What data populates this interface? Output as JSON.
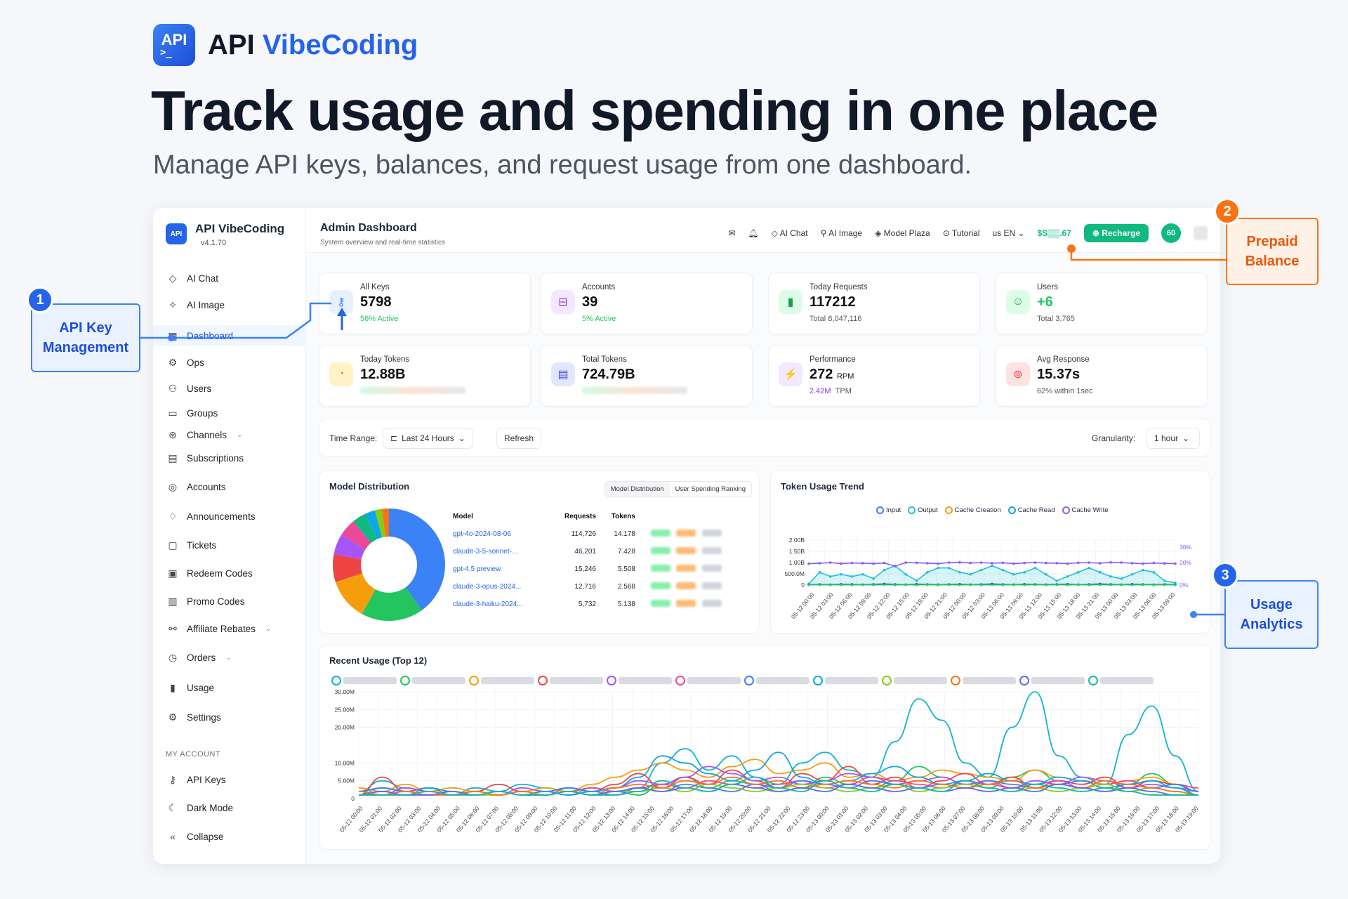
{
  "brand": {
    "logo_text": "API",
    "logo_prompt": ">_",
    "name_a": "API",
    "name_b": "VibeCoding"
  },
  "hero": {
    "title": "Track usage and spending in one place",
    "subtitle": "Manage API keys, balances, and request usage from one dashboard."
  },
  "sidebar": {
    "logo_text": "API",
    "title": "API VibeCoding",
    "version": "v4.1.70",
    "items": [
      {
        "label": "AI Chat",
        "icon": "chat-icon"
      },
      {
        "label": "AI Image",
        "icon": "image-icon"
      },
      {
        "label": "Dashboard",
        "icon": "dashboard-icon",
        "active": true
      },
      {
        "label": "Ops",
        "icon": "ops-icon"
      },
      {
        "label": "Users",
        "icon": "users-icon"
      },
      {
        "label": "Groups",
        "icon": "folder-icon"
      },
      {
        "label": "Channels",
        "icon": "channels-icon",
        "chevron": true
      },
      {
        "label": "Subscriptions",
        "icon": "subscriptions-icon"
      },
      {
        "label": "Accounts",
        "icon": "accounts-icon"
      },
      {
        "label": "Announcements",
        "icon": "announcements-icon"
      },
      {
        "label": "Tickets",
        "icon": "tickets-icon"
      },
      {
        "label": "Redeem Codes",
        "icon": "redeem-icon"
      },
      {
        "label": "Promo Codes",
        "icon": "promo-icon"
      },
      {
        "label": "Affiliate Rebates",
        "icon": "affiliate-icon",
        "chevron": true
      },
      {
        "label": "Orders",
        "icon": "orders-icon",
        "chevron": true
      },
      {
        "label": "Usage",
        "icon": "usage-icon"
      },
      {
        "label": "Settings",
        "icon": "gear-icon"
      }
    ],
    "my_account_label": "MY ACCOUNT",
    "account_items": [
      {
        "label": "API Keys",
        "icon": "key-icon"
      },
      {
        "label": "Dark Mode",
        "icon": "moon-icon"
      },
      {
        "label": "Collapse",
        "icon": "collapse-icon"
      }
    ]
  },
  "topbar": {
    "title": "Admin Dashboard",
    "subtitle": "System overview and real-time statistics",
    "ai_chat": "AI Chat",
    "ai_image": "AI Image",
    "model_plaza": "Model Plaza",
    "tutorial": "Tutorial",
    "lang": "us EN",
    "balance": "$S▒▒.67",
    "recharge": "Recharge",
    "circle": "60"
  },
  "cards": [
    {
      "label": "All Keys",
      "value": "5798",
      "note": "56% Active",
      "note_style": "green",
      "icon": "key-icon",
      "bg": "#e8f0fe",
      "fg": "#3b82f6"
    },
    {
      "label": "Accounts",
      "value": "39",
      "note": "5% Active",
      "note_style": "green",
      "icon": "lock-icon",
      "bg": "#f3e8ff",
      "fg": "#9333ea"
    },
    {
      "label": "Today Requests",
      "value": "117212",
      "note": "Total 8,047,116",
      "note_style": "",
      "icon": "bar-chart-icon",
      "bg": "#dcfce7",
      "fg": "#16a34a"
    },
    {
      "label": "Users",
      "value": "+6",
      "note": "Total 3,765",
      "note_style": "",
      "icon": "user-add-icon",
      "bg": "#dcfce7",
      "fg": "#16a34a",
      "value_style": "green"
    },
    {
      "label": "Today Tokens",
      "value": "12.88B",
      "note": "",
      "icon": "timer-icon",
      "bg": "#fef3c7",
      "fg": "#f59e0b",
      "blur": true
    },
    {
      "label": "Total Tokens",
      "value": "724.79B",
      "note": "",
      "icon": "database-icon",
      "bg": "#e0e7ff",
      "fg": "#4f46e5",
      "blur": true
    },
    {
      "label": "Performance",
      "value": "272",
      "value_unit": "RPM",
      "note": "2.42M",
      "note_unit": "TPM",
      "icon": "bolt-icon",
      "bg": "#f3e8ff",
      "fg": "#9333ea"
    },
    {
      "label": "Avg Response",
      "value": "15.37s",
      "note": "62% within 1sec",
      "icon": "stopwatch-icon",
      "bg": "#fee2e2",
      "fg": "#ef4444"
    }
  ],
  "filters": {
    "time_range_label": "Time Range:",
    "time_range_value": "Last 24 Hours",
    "refresh": "Refresh",
    "granularity_label": "Granularity:",
    "granularity_value": "1 hour"
  },
  "model_panel": {
    "title": "Model Distribution",
    "tab1": "Model Distribution",
    "tab2": "User Spending Ranking",
    "headers": [
      "Model",
      "Requests",
      "Tokens"
    ],
    "rows": [
      {
        "model": "gpt-4o-2024-08-06",
        "requests": "114,726",
        "tokens": "14.178"
      },
      {
        "model": "claude-3-5-sonnet-...",
        "requests": "46,201",
        "tokens": "7.428"
      },
      {
        "model": "gpt-4.5 preview",
        "requests": "15,246",
        "tokens": "5.508"
      },
      {
        "model": "claude-3-opus-2024...",
        "requests": "12,716",
        "tokens": "2.568"
      },
      {
        "model": "claude-3-haiku-2024...",
        "requests": "5,732",
        "tokens": "5.138"
      }
    ]
  },
  "token_panel": {
    "title": "Token Usage Trend",
    "legend": [
      "Input",
      "Output",
      "Cache Creation",
      "Cache Read",
      "Cache Write"
    ],
    "yticks": [
      "2.00B",
      "1.50B",
      "1.00B",
      "500.0M",
      "0"
    ],
    "rticks": [
      "30%",
      "20%",
      "0%"
    ]
  },
  "usage_panel": {
    "title": "Recent Usage (Top 12)",
    "yticks": [
      "30.00M",
      "25.00M",
      "20.00M",
      "10.00M",
      "5.00M",
      "0"
    ]
  },
  "callouts": {
    "c1": {
      "num": "1",
      "text_a": "API Key",
      "text_b": "Management"
    },
    "c2": {
      "num": "2",
      "text_a": "Prepaid",
      "text_b": "Balance"
    },
    "c3": {
      "num": "3",
      "text_a": "Usage",
      "text_b": "Analytics"
    }
  },
  "chart_data": [
    {
      "type": "pie",
      "title": "Model Distribution",
      "values": [
        40,
        18,
        12,
        8,
        6,
        5,
        4,
        3,
        2,
        2
      ],
      "colors": [
        "#3b82f6",
        "#22c55e",
        "#f59e0b",
        "#ef4444",
        "#a855f7",
        "#ec4899",
        "#10b981",
        "#0ea5e9",
        "#84cc16",
        "#f97316"
      ]
    },
    {
      "type": "line",
      "title": "Token Usage Trend",
      "series": [
        {
          "name": "Input",
          "color": "#22c1d6",
          "values": [
            0.05,
            0.6,
            0.4,
            0.5,
            0.4,
            0.5,
            0.3,
            0.7,
            0.9,
            0.5,
            0.2,
            0.6,
            0.8,
            0.8,
            0.6,
            0.5,
            0.7,
            0.9,
            0.7,
            0.5,
            0.6,
            0.8,
            0.5,
            0.2,
            0.4,
            0.6,
            0.8,
            0.6,
            0.4,
            0.3,
            0.5,
            0.7,
            0.6,
            0.2,
            0.1
          ]
        },
        {
          "name": "Cache Write",
          "color": "#8b5cf6",
          "values": [
            1.0,
            1.02,
            1.05,
            1.0,
            1.03,
            1.02,
            1.0,
            1.03,
            0.88,
            1.05,
            1.04,
            1.02,
            1.0,
            1.05,
            1.06,
            1.03,
            1.05,
            1.02,
            1.04,
            1.0,
            1.03,
            1.05,
            1.03,
            1.02,
            1.0,
            1.04,
            1.05,
            1.02,
            1.06,
            1.05,
            1.02,
            1.0,
            1.03,
            1.01,
            1.0
          ]
        },
        {
          "name": "Output",
          "color": "#1e40af",
          "values": [
            0.02,
            0.03,
            0.02,
            0.04,
            0.03,
            0.02,
            0.03,
            0.05,
            0.03,
            0.02,
            0.04,
            0.03,
            0.02,
            0.03,
            0.04,
            0.02,
            0.03,
            0.05,
            0.03,
            0.02,
            0.04,
            0.03,
            0.02,
            0.03,
            0.04,
            0.02,
            0.03,
            0.05,
            0.03,
            0.02,
            0.04,
            0.03,
            0.02,
            0.03,
            0.02
          ]
        },
        {
          "name": "Cache Read",
          "color": "#22c55e",
          "values": [
            0.01,
            0.02,
            0.01,
            0.02,
            0.01,
            0.02,
            0.01,
            0.02,
            0.01,
            0.02,
            0.01,
            0.02,
            0.01,
            0.02,
            0.01,
            0.02,
            0.01,
            0.02,
            0.01,
            0.02,
            0.01,
            0.02,
            0.01,
            0.02,
            0.01,
            0.02,
            0.01,
            0.02,
            0.01,
            0.02,
            0.01,
            0.02,
            0.01,
            0.02,
            0.01
          ]
        }
      ],
      "ylim": [
        0,
        2.1
      ]
    },
    {
      "type": "line",
      "title": "Recent Usage (Top 12)",
      "ylim": [
        0,
        30
      ],
      "series": [
        {
          "color": "#10b5c8",
          "values": [
            2,
            5,
            3,
            2,
            1,
            3,
            2,
            4,
            3,
            2,
            1,
            2,
            3,
            10,
            14,
            8,
            12,
            6,
            4,
            10,
            13,
            8,
            6,
            16,
            28,
            22,
            10,
            6,
            20,
            30,
            12,
            6,
            4,
            18,
            26,
            12,
            2
          ]
        },
        {
          "color": "#22c55e",
          "values": [
            1,
            3,
            2,
            1,
            2,
            1,
            2,
            1,
            2,
            1,
            3,
            2,
            1,
            4,
            6,
            3,
            5,
            4,
            2,
            3,
            6,
            4,
            3,
            5,
            9,
            6,
            4,
            3,
            6,
            8,
            5,
            3,
            2,
            4,
            7,
            4,
            1
          ]
        },
        {
          "color": "#f59e0b",
          "values": [
            3,
            2,
            4,
            2,
            3,
            2,
            1,
            2,
            3,
            2,
            4,
            6,
            8,
            10,
            8,
            6,
            9,
            11,
            7,
            8,
            10,
            6,
            7,
            5,
            6,
            8,
            7,
            6,
            5,
            8,
            6,
            5,
            4,
            5,
            6,
            4,
            3
          ]
        },
        {
          "color": "#ef4444",
          "values": [
            1,
            6,
            2,
            3,
            1,
            2,
            4,
            2,
            1,
            3,
            2,
            4,
            7,
            3,
            6,
            4,
            8,
            5,
            3,
            7,
            5,
            9,
            4,
            6,
            3,
            5,
            7,
            4,
            6,
            3,
            5,
            4,
            6,
            3,
            5,
            4,
            2
          ]
        },
        {
          "color": "#a855f7",
          "values": [
            2,
            1,
            3,
            2,
            1,
            2,
            1,
            3,
            2,
            1,
            2,
            3,
            5,
            4,
            6,
            9,
            7,
            5,
            6,
            4,
            5,
            7,
            6,
            4,
            5,
            6,
            4,
            5,
            3,
            5,
            4,
            6,
            5,
            3,
            4,
            3,
            2
          ]
        },
        {
          "color": "#ec4899",
          "values": [
            1,
            2,
            1,
            2,
            1,
            2,
            1,
            2,
            1,
            2,
            3,
            2,
            3,
            4,
            3,
            5,
            4,
            3,
            4,
            5,
            3,
            4,
            6,
            5,
            4,
            3,
            5,
            4,
            3,
            4,
            5,
            3,
            4,
            5,
            3,
            4,
            3
          ]
        },
        {
          "color": "#3b82f6",
          "values": [
            2,
            3,
            2,
            1,
            2,
            1,
            2,
            1,
            2,
            3,
            2,
            1,
            3,
            2,
            4,
            3,
            2,
            4,
            3,
            5,
            4,
            3,
            5,
            4,
            3,
            4,
            3,
            5,
            4,
            3,
            4,
            5,
            3,
            4,
            3,
            4,
            2
          ]
        },
        {
          "color": "#0ea5e9",
          "values": [
            1,
            2,
            1,
            3,
            2,
            1,
            2,
            1,
            2,
            1,
            2,
            3,
            6,
            12,
            10,
            7,
            5,
            8,
            13,
            6,
            4,
            5,
            7,
            9,
            6,
            4,
            5,
            7,
            5,
            4,
            6,
            5,
            3,
            4,
            5,
            3,
            1
          ]
        },
        {
          "color": "#84cc16",
          "values": [
            1,
            1,
            2,
            1,
            2,
            1,
            1,
            2,
            1,
            2,
            1,
            2,
            2,
            3,
            2,
            4,
            3,
            2,
            3,
            4,
            3,
            2,
            3,
            4,
            2,
            3,
            4,
            3,
            2,
            3,
            2,
            3,
            4,
            2,
            3,
            2,
            1
          ]
        },
        {
          "color": "#f97316",
          "values": [
            2,
            1,
            2,
            1,
            1,
            2,
            1,
            2,
            1,
            2,
            1,
            3,
            4,
            3,
            5,
            4,
            6,
            4,
            5,
            3,
            4,
            5,
            4,
            3,
            5,
            4,
            3,
            4,
            5,
            3,
            4,
            3,
            5,
            4,
            3,
            2,
            1
          ]
        },
        {
          "color": "#6366f1",
          "values": [
            1,
            2,
            1,
            1,
            2,
            1,
            2,
            1,
            1,
            2,
            1,
            2,
            3,
            2,
            3,
            2,
            4,
            3,
            2,
            3,
            2,
            4,
            3,
            2,
            3,
            2,
            3,
            2,
            3,
            2,
            4,
            3,
            2,
            3,
            2,
            1,
            1
          ]
        },
        {
          "color": "#14b8a6",
          "values": [
            1,
            1,
            1,
            2,
            1,
            1,
            2,
            1,
            1,
            2,
            1,
            1,
            2,
            5,
            3,
            2,
            4,
            6,
            3,
            2,
            5,
            3,
            2,
            4,
            3,
            2,
            5,
            3,
            2,
            4,
            3,
            2,
            3,
            2,
            1,
            1,
            1
          ]
        }
      ]
    }
  ]
}
